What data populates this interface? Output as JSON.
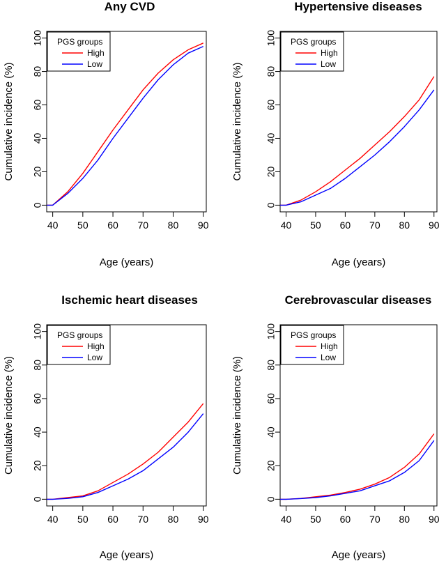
{
  "chart_data": [
    {
      "type": "line",
      "title": "Any CVD",
      "xlabel": "Age (years)",
      "ylabel": "Cumulative incidence (%)",
      "xlim": [
        38,
        91
      ],
      "ylim": [
        -4,
        104
      ],
      "xticks": [
        40,
        50,
        60,
        70,
        80,
        90
      ],
      "yticks": [
        0,
        20,
        40,
        60,
        80,
        100
      ],
      "legend_title": "PGS groups",
      "legend_position": "top-left",
      "series": [
        {
          "name": "High",
          "color": "#ff0000",
          "x": [
            38,
            40,
            45,
            50,
            55,
            60,
            65,
            70,
            75,
            80,
            85,
            90
          ],
          "y": [
            0,
            0,
            8,
            19,
            32,
            45,
            57,
            69,
            79,
            87,
            93,
            97
          ]
        },
        {
          "name": "Low",
          "color": "#0000ff",
          "x": [
            38,
            40,
            45,
            50,
            55,
            60,
            65,
            70,
            75,
            80,
            85,
            90
          ],
          "y": [
            0,
            0,
            7,
            16,
            27,
            40,
            52,
            64,
            75,
            84,
            91,
            95
          ]
        }
      ]
    },
    {
      "type": "line",
      "title": "Hypertensive diseases",
      "xlabel": "Age (years)",
      "ylabel": "Cumulative incidence (%)",
      "xlim": [
        38,
        91
      ],
      "ylim": [
        -4,
        104
      ],
      "xticks": [
        40,
        50,
        60,
        70,
        80,
        90
      ],
      "yticks": [
        0,
        20,
        40,
        60,
        80,
        100
      ],
      "legend_title": "PGS groups",
      "legend_position": "top-left",
      "series": [
        {
          "name": "High",
          "color": "#ff0000",
          "x": [
            38,
            40,
            45,
            50,
            55,
            60,
            65,
            70,
            75,
            80,
            85,
            90
          ],
          "y": [
            0,
            0,
            3,
            8,
            14,
            21,
            28,
            36,
            44,
            53,
            63,
            77
          ]
        },
        {
          "name": "Low",
          "color": "#0000ff",
          "x": [
            38,
            40,
            45,
            50,
            55,
            60,
            65,
            70,
            75,
            80,
            85,
            90
          ],
          "y": [
            0,
            0,
            2,
            6,
            10,
            16,
            23,
            30,
            38,
            47,
            57,
            69
          ]
        }
      ]
    },
    {
      "type": "line",
      "title": "Ischemic heart diseases",
      "xlabel": "Age (years)",
      "ylabel": "Cumulative incidence (%)",
      "xlim": [
        38,
        91
      ],
      "ylim": [
        -4,
        104
      ],
      "xticks": [
        40,
        50,
        60,
        70,
        80,
        90
      ],
      "yticks": [
        0,
        20,
        40,
        60,
        80,
        100
      ],
      "legend_title": "PGS groups",
      "legend_position": "top-left",
      "series": [
        {
          "name": "High",
          "color": "#ff0000",
          "x": [
            38,
            40,
            45,
            50,
            55,
            60,
            65,
            70,
            75,
            80,
            85,
            90
          ],
          "y": [
            0,
            0,
            1,
            2,
            5,
            10,
            15,
            21,
            28,
            37,
            46,
            57
          ]
        },
        {
          "name": "Low",
          "color": "#0000ff",
          "x": [
            38,
            40,
            45,
            50,
            55,
            60,
            65,
            70,
            75,
            80,
            85,
            90
          ],
          "y": [
            0,
            0,
            0.5,
            1.5,
            4,
            8,
            12,
            17,
            24,
            31,
            40,
            51
          ]
        }
      ]
    },
    {
      "type": "line",
      "title": "Cerebrovascular diseases",
      "xlabel": "Age (years)",
      "ylabel": "Cumulative incidence (%)",
      "xlim": [
        38,
        91
      ],
      "ylim": [
        -4,
        104
      ],
      "xticks": [
        40,
        50,
        60,
        70,
        80,
        90
      ],
      "yticks": [
        0,
        20,
        40,
        60,
        80,
        100
      ],
      "legend_title": "PGS groups",
      "legend_position": "top-left",
      "series": [
        {
          "name": "High",
          "color": "#ff0000",
          "x": [
            38,
            40,
            45,
            50,
            55,
            60,
            65,
            70,
            75,
            80,
            85,
            90
          ],
          "y": [
            0,
            0,
            0.5,
            1.5,
            2.5,
            4,
            6,
            9,
            13,
            19,
            27,
            39
          ]
        },
        {
          "name": "Low",
          "color": "#0000ff",
          "x": [
            38,
            40,
            45,
            50,
            55,
            60,
            65,
            70,
            75,
            80,
            85,
            90
          ],
          "y": [
            0,
            0,
            0.4,
            1,
            2,
            3.5,
            5,
            8,
            11,
            16,
            23,
            35
          ]
        }
      ]
    }
  ]
}
